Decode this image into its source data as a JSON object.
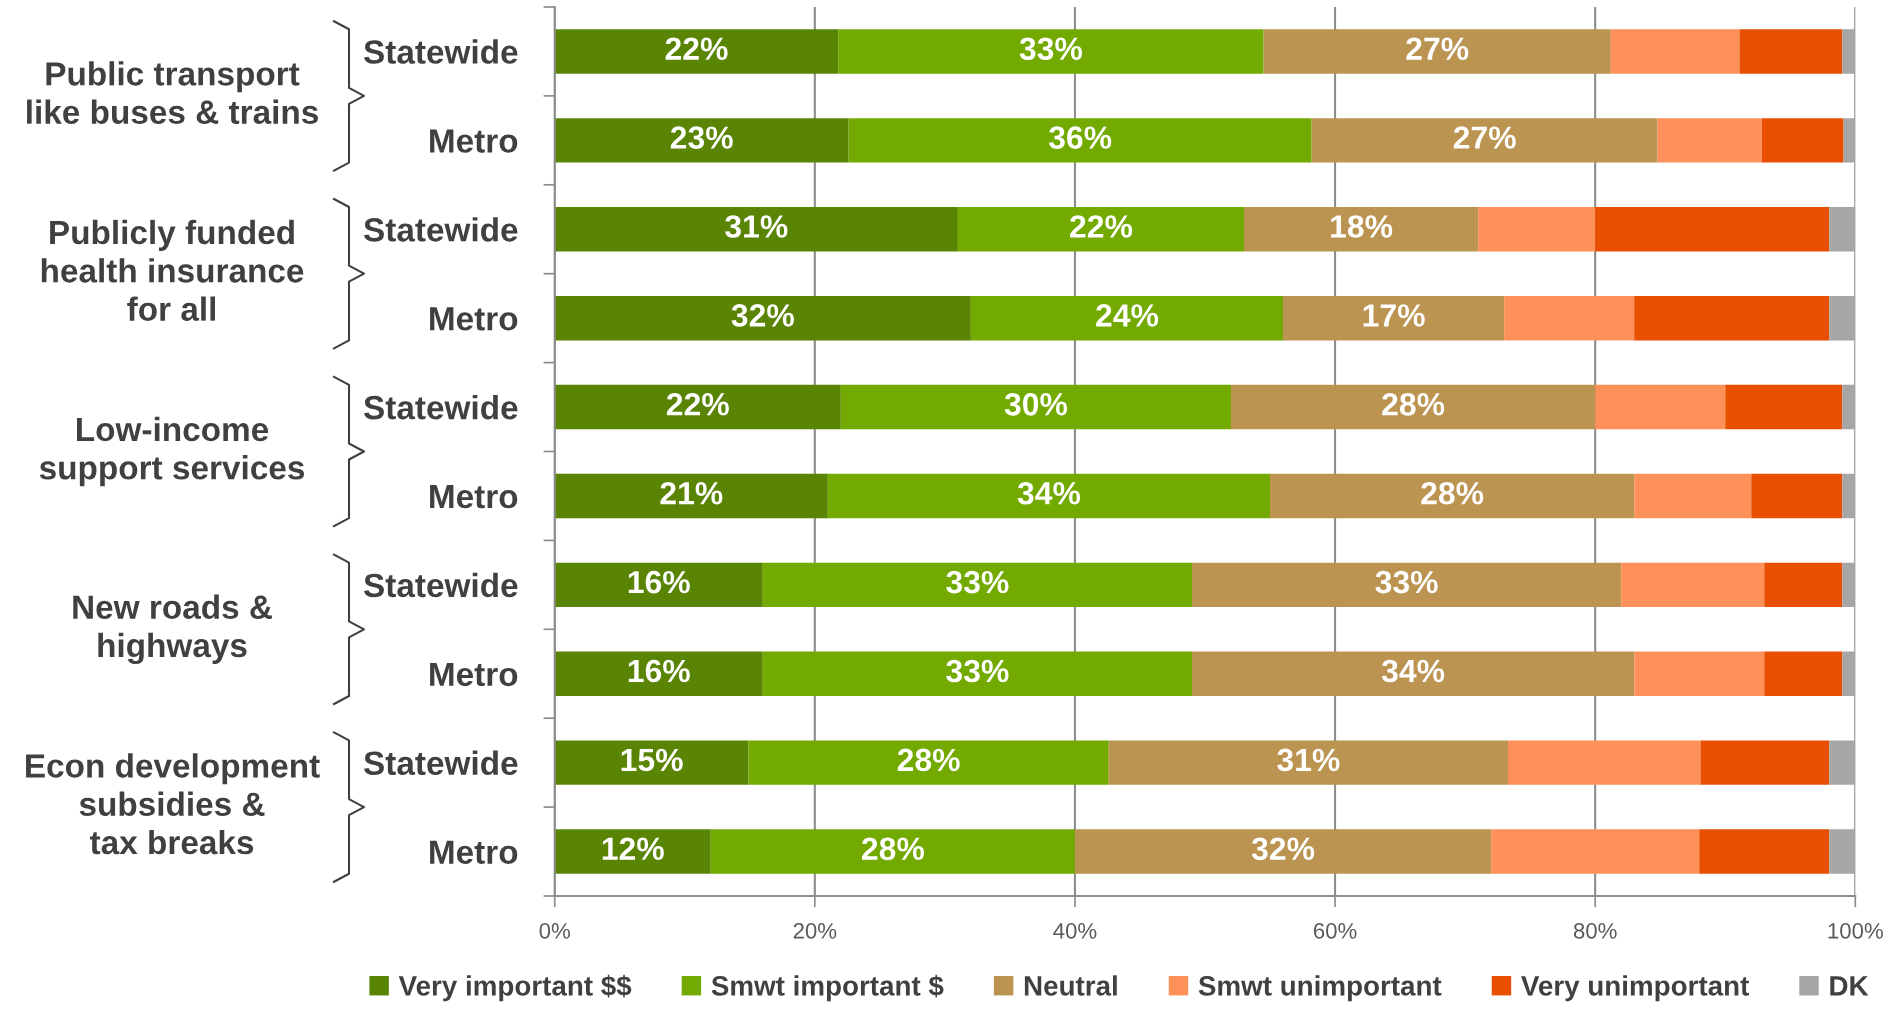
{
  "chart_data": {
    "type": "bar",
    "orientation": "horizontal",
    "stacked": true,
    "categories": [
      "Statewide",
      "Metro",
      "Statewide",
      "Metro",
      "Statewide",
      "Metro",
      "Statewide",
      "Metro",
      "Statewide",
      "Metro"
    ],
    "annotations": [
      "Public transport\nlike buses & trains",
      "Publicly funded\nhealth insurance\nfor all",
      "Low-income\nsupport services",
      "New roads &\nhighways",
      "Econ development\nsubsidies &\ntax breaks"
    ],
    "series": [
      {
        "name": "Very important $$",
        "color": "#5a8404",
        "values": [
          21.8,
          22.6,
          31,
          32,
          22,
          21,
          16,
          16,
          14.9,
          12
        ],
        "value_labels": [
          "22%",
          "23%",
          "31%",
          "32%",
          "22%",
          "21%",
          "16%",
          "16%",
          "15%",
          "12%"
        ]
      },
      {
        "name": "Smwt important $",
        "color": "#72aa00",
        "values": [
          32.7,
          35.6,
          22,
          24,
          30,
          34,
          33,
          33,
          27.7,
          28
        ],
        "value_labels": [
          "33%",
          "36%",
          "22%",
          "24%",
          "30%",
          "34%",
          "33%",
          "33%",
          "28%",
          "28%"
        ]
      },
      {
        "name": "Neutral",
        "color": "#bc9452",
        "values": [
          26.7,
          26.6,
          18,
          17,
          28,
          28,
          33,
          34,
          30.7,
          32
        ],
        "value_labels": [
          "27%",
          "27%",
          "18%",
          "17%",
          "28%",
          "28%",
          "33%",
          "34%",
          "31%",
          "32%"
        ]
      },
      {
        "name": "Smwt unimportant",
        "color": "#fe915a",
        "values": [
          9.9,
          8.0,
          9,
          10,
          10,
          9,
          11,
          10,
          14.8,
          16
        ]
      },
      {
        "name": "Very unimportant",
        "color": "#e84f00",
        "values": [
          7.9,
          6.3,
          18,
          15,
          9,
          7,
          6,
          6,
          9.9,
          10
        ]
      },
      {
        "name": "DK",
        "color": "#a6a6a6",
        "values": [
          1.0,
          0.9,
          2,
          2,
          1,
          1,
          1,
          1,
          2.0,
          2
        ]
      }
    ],
    "xlim": [
      0,
      100
    ],
    "xticks": [
      {
        "value": 0,
        "label": "0%"
      },
      {
        "value": 20,
        "label": "20%"
      },
      {
        "value": 40,
        "label": "40%"
      },
      {
        "value": 60,
        "label": "60%"
      },
      {
        "value": 80,
        "label": "80%"
      },
      {
        "value": 100,
        "label": "100%"
      }
    ],
    "grid": "x",
    "legend": "bottom"
  }
}
